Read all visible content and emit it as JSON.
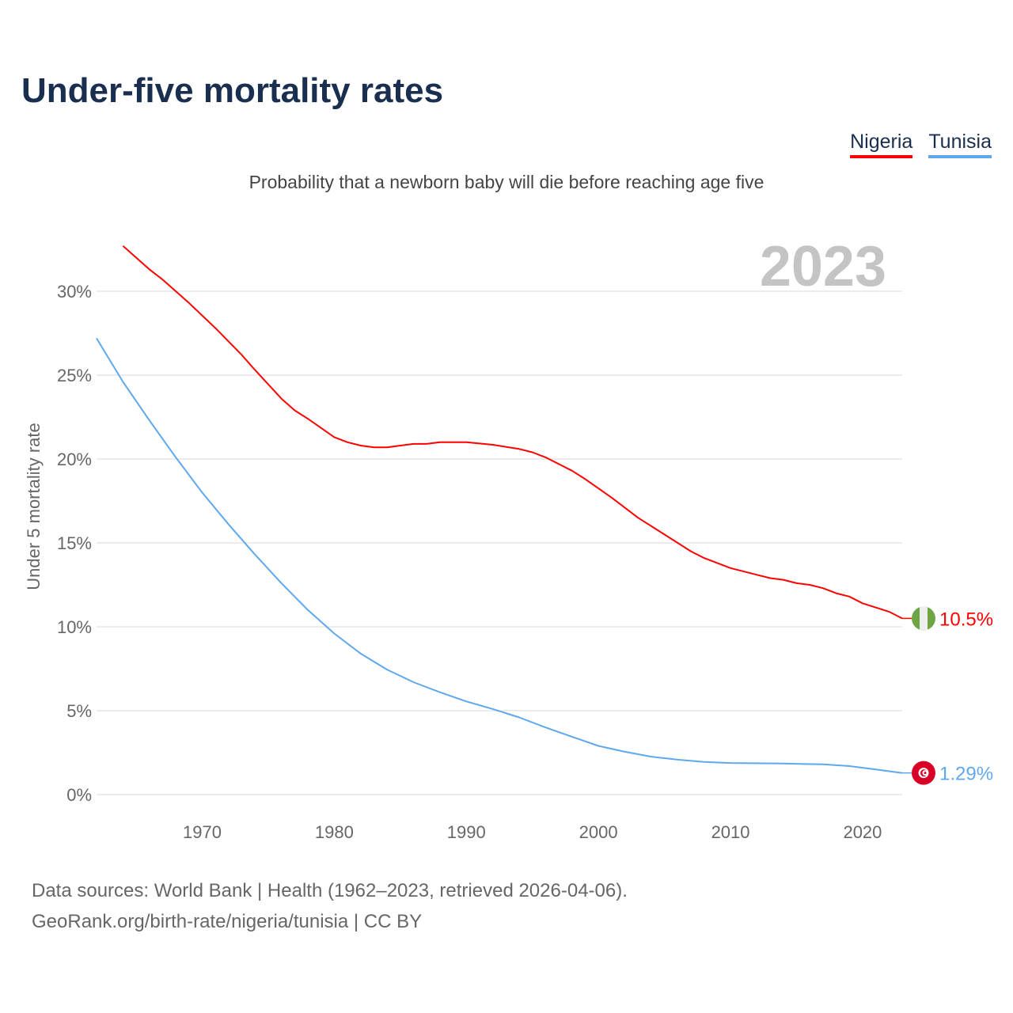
{
  "header": {
    "title": "Under-five mortality rates",
    "subtitle": "Probability that a newborn baby will die before reaching age five"
  },
  "legend": [
    {
      "label": "Nigeria",
      "color": "#ff0000"
    },
    {
      "label": "Tunisia",
      "color": "#5fa8ee"
    }
  ],
  "footer": {
    "line1": "Data sources: World Bank | Health (1962–2023, retrieved 2026-04-06).",
    "line2": "GeoRank.org/birth-rate/nigeria/tunisia | CC BY"
  },
  "chart_data": {
    "type": "line",
    "title": "Under-five mortality rates",
    "year_label": "2023",
    "xlabel": "",
    "ylabel": "Under 5 mortality rate",
    "xlim": [
      1962,
      2023
    ],
    "ylim": [
      0,
      32
    ],
    "x_ticks": [
      1970,
      1980,
      1990,
      2000,
      2010,
      2020
    ],
    "y_ticks": [
      0,
      5,
      10,
      15,
      20,
      25,
      30
    ],
    "y_tick_labels": [
      "0%",
      "5%",
      "10%",
      "15%",
      "20%",
      "25%",
      "30%"
    ],
    "grid": true,
    "legend_position": "top-right",
    "series": [
      {
        "name": "Nigeria",
        "color": "#ff0000",
        "end_label": "10.5%",
        "flag": "nigeria-flag",
        "points": [
          [
            1964,
            32.7
          ],
          [
            1966,
            31.3
          ],
          [
            1967,
            30.7
          ],
          [
            1969,
            29.3
          ],
          [
            1971,
            27.8
          ],
          [
            1973,
            26.2
          ],
          [
            1974,
            25.3
          ],
          [
            1976,
            23.6
          ],
          [
            1977,
            22.9
          ],
          [
            1978,
            22.4
          ],
          [
            1980,
            21.3
          ],
          [
            1981,
            21.0
          ],
          [
            1982,
            20.8
          ],
          [
            1983,
            20.7
          ],
          [
            1984,
            20.7
          ],
          [
            1986,
            20.9
          ],
          [
            1987,
            20.9
          ],
          [
            1988,
            21.0
          ],
          [
            1990,
            21.0
          ],
          [
            1992,
            20.85
          ],
          [
            1994,
            20.6
          ],
          [
            1995,
            20.4
          ],
          [
            1996,
            20.1
          ],
          [
            1998,
            19.3
          ],
          [
            1999,
            18.8
          ],
          [
            2000,
            18.25
          ],
          [
            2001,
            17.7
          ],
          [
            2003,
            16.5
          ],
          [
            2005,
            15.5
          ],
          [
            2007,
            14.5
          ],
          [
            2008,
            14.1
          ],
          [
            2010,
            13.5
          ],
          [
            2012,
            13.1
          ],
          [
            2013,
            12.9
          ],
          [
            2014,
            12.8
          ],
          [
            2015,
            12.6
          ],
          [
            2016,
            12.5
          ],
          [
            2017,
            12.3
          ],
          [
            2018,
            12.0
          ],
          [
            2019,
            11.8
          ],
          [
            2020,
            11.4
          ],
          [
            2022,
            10.9
          ],
          [
            2023,
            10.5
          ]
        ]
      },
      {
        "name": "Tunisia",
        "color": "#5fa8ee",
        "end_label": "1.29%",
        "flag": "tunisia-flag",
        "points": [
          [
            1962,
            27.2
          ],
          [
            1964,
            24.6
          ],
          [
            1966,
            22.3
          ],
          [
            1968,
            20.1
          ],
          [
            1970,
            18.0
          ],
          [
            1972,
            16.1
          ],
          [
            1974,
            14.3
          ],
          [
            1976,
            12.6
          ],
          [
            1978,
            11.0
          ],
          [
            1980,
            9.6
          ],
          [
            1982,
            8.4
          ],
          [
            1984,
            7.45
          ],
          [
            1986,
            6.7
          ],
          [
            1988,
            6.1
          ],
          [
            1990,
            5.55
          ],
          [
            1992,
            5.1
          ],
          [
            1994,
            4.6
          ],
          [
            1996,
            4.0
          ],
          [
            1998,
            3.45
          ],
          [
            2000,
            2.9
          ],
          [
            2002,
            2.55
          ],
          [
            2004,
            2.26
          ],
          [
            2006,
            2.08
          ],
          [
            2008,
            1.95
          ],
          [
            2010,
            1.88
          ],
          [
            2014,
            1.85
          ],
          [
            2017,
            1.8
          ],
          [
            2019,
            1.7
          ],
          [
            2021,
            1.5
          ],
          [
            2023,
            1.29
          ]
        ]
      }
    ]
  }
}
